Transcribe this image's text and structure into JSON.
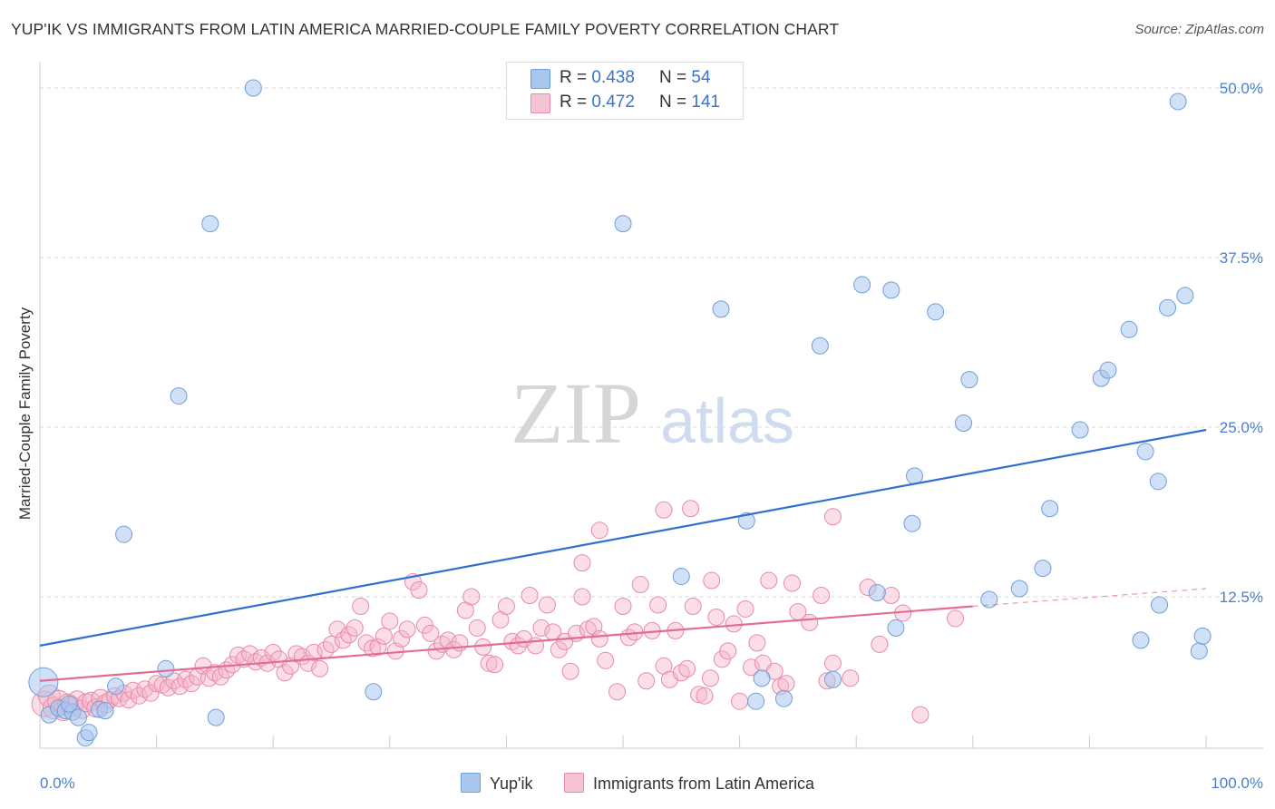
{
  "header": {
    "title": "YUP'IK VS IMMIGRANTS FROM LATIN AMERICA MARRIED-COUPLE FAMILY POVERTY CORRELATION CHART",
    "source": "Source: ZipAtlas.com"
  },
  "legend_top": {
    "rows": [
      {
        "r_label": "R = ",
        "r_value": "0.438",
        "n_label": "N = ",
        "n_value": "54"
      },
      {
        "r_label": "R = ",
        "r_value": "0.472",
        "n_label": "N = ",
        "n_value": "141"
      }
    ]
  },
  "legend_bottom": {
    "items": [
      {
        "label": "Yup'ik"
      },
      {
        "label": "Immigrants from Latin America"
      }
    ]
  },
  "colors": {
    "blue_fill": "#a9c7ee",
    "blue_stroke": "#6f9fd8",
    "blue_line": "#3070cc",
    "pink_fill": "#f6b6ca",
    "pink_stroke": "#e88aa8",
    "pink_line": "#e26c98",
    "grid": "#d9d9d9",
    "tick_label": "#4a7fd0"
  },
  "watermark": {
    "zip": "ZIP",
    "atlas": "atlas"
  },
  "chart_data": {
    "type": "scatter",
    "title": "YUP'IK VS IMMIGRANTS FROM LATIN AMERICA MARRIED-COUPLE FAMILY POVERTY CORRELATION CHART",
    "xlabel": "",
    "ylabel": "Married-Couple Family Poverty",
    "xlim": [
      0,
      100
    ],
    "ylim": [
      0,
      52
    ],
    "x_tick_labels": [
      "0.0%",
      "100.0%"
    ],
    "y_ticks": [
      12.5,
      25.0,
      37.5,
      50.0
    ],
    "y_tick_labels": [
      "12.5%",
      "25.0%",
      "37.5%",
      "50.0%"
    ],
    "grid": true,
    "legend_position": "top-center",
    "series": [
      {
        "name": "Yup'ik",
        "r": 0.438,
        "n": 54,
        "trend": {
          "x0": 0,
          "y0": 8.9,
          "x1": 100,
          "y1": 24.8
        },
        "points": [
          [
            0.3,
            6.2,
            16
          ],
          [
            0.8,
            3.8,
            9
          ],
          [
            1.6,
            4.3,
            9
          ],
          [
            2.2,
            4.1,
            9
          ],
          [
            2.8,
            4.0,
            9
          ],
          [
            3.3,
            3.6,
            9
          ],
          [
            3.9,
            2.1,
            9
          ],
          [
            4.2,
            2.5,
            9
          ],
          [
            5.1,
            4.2,
            9
          ],
          [
            5.6,
            4.1,
            9
          ],
          [
            6.5,
            5.9,
            9
          ],
          [
            7.2,
            17.1,
            9
          ],
          [
            10.8,
            7.2,
            9
          ],
          [
            11.9,
            27.3,
            9
          ],
          [
            14.6,
            40.0,
            9
          ],
          [
            15.1,
            3.6,
            9
          ],
          [
            18.3,
            50.0,
            9
          ],
          [
            28.6,
            5.5,
            9
          ],
          [
            50.0,
            40.0,
            9
          ],
          [
            55.0,
            14.0,
            9
          ],
          [
            58.4,
            33.7,
            9
          ],
          [
            60.6,
            18.1,
            9
          ],
          [
            61.4,
            4.8,
            9
          ],
          [
            61.9,
            6.5,
            9
          ],
          [
            63.8,
            5.0,
            9
          ],
          [
            66.9,
            31.0,
            9
          ],
          [
            68.0,
            6.4,
            9
          ],
          [
            70.5,
            35.5,
            9
          ],
          [
            71.8,
            12.8,
            9
          ],
          [
            73.0,
            35.1,
            9
          ],
          [
            73.4,
            10.2,
            9
          ],
          [
            74.8,
            17.9,
            9
          ],
          [
            75.0,
            21.4,
            9
          ],
          [
            76.8,
            33.5,
            9
          ],
          [
            79.2,
            25.3,
            9
          ],
          [
            79.7,
            28.5,
            9
          ],
          [
            81.4,
            12.3,
            9
          ],
          [
            84.0,
            13.1,
            9
          ],
          [
            86.0,
            14.6,
            9
          ],
          [
            86.6,
            19.0,
            9
          ],
          [
            89.2,
            24.8,
            9
          ],
          [
            91.0,
            28.6,
            9
          ],
          [
            91.6,
            29.2,
            9
          ],
          [
            93.4,
            32.2,
            9
          ],
          [
            94.4,
            9.3,
            9
          ],
          [
            94.8,
            23.2,
            9
          ],
          [
            95.9,
            21.0,
            9
          ],
          [
            96.0,
            11.9,
            9
          ],
          [
            96.7,
            33.8,
            9
          ],
          [
            97.6,
            49.0,
            9
          ],
          [
            98.2,
            34.7,
            9
          ],
          [
            99.4,
            8.5,
            9
          ],
          [
            99.7,
            9.6,
            9
          ],
          [
            2.5,
            4.6,
            9
          ]
        ]
      },
      {
        "name": "Immigrants from Latin America",
        "r": 0.472,
        "n": 141,
        "trend": {
          "x0": 0,
          "y0": 6.3,
          "x1": 80,
          "y1": 11.8
        },
        "trend_dashed": {
          "x0": 80,
          "y0": 11.8,
          "x1": 100,
          "y1": 13.1
        },
        "points": [
          [
            0.4,
            4.6,
            14
          ],
          [
            0.8,
            5.2,
            12
          ],
          [
            1.2,
            4.3,
            12
          ],
          [
            1.6,
            4.8,
            12
          ],
          [
            2.0,
            4.1,
            11
          ],
          [
            2.4,
            4.6,
            11
          ],
          [
            2.8,
            4.4,
            11
          ],
          [
            3.2,
            4.9,
            10
          ],
          [
            3.6,
            4.2,
            10
          ],
          [
            4.0,
            4.7,
            10
          ],
          [
            4.4,
            4.8,
            10
          ],
          [
            4.8,
            4.3,
            10
          ],
          [
            5.2,
            5.0,
            10
          ],
          [
            5.6,
            4.6,
            10
          ],
          [
            6.0,
            4.9,
            9
          ],
          [
            6.4,
            5.2,
            9
          ],
          [
            6.8,
            5.0,
            9
          ],
          [
            7.2,
            5.4,
            9
          ],
          [
            7.6,
            4.9,
            9
          ],
          [
            8.0,
            5.6,
            9
          ],
          [
            8.5,
            5.2,
            9
          ],
          [
            9.0,
            5.7,
            9
          ],
          [
            9.5,
            5.4,
            9
          ],
          [
            10.0,
            6.1,
            9
          ],
          [
            10.5,
            6.0,
            9
          ],
          [
            11.0,
            5.8,
            9
          ],
          [
            11.5,
            6.3,
            9
          ],
          [
            12.0,
            5.9,
            9
          ],
          [
            12.5,
            6.4,
            9
          ],
          [
            13.0,
            6.1,
            9
          ],
          [
            13.5,
            6.6,
            9
          ],
          [
            14.0,
            7.4,
            9
          ],
          [
            14.5,
            6.5,
            9
          ],
          [
            15.0,
            6.9,
            9
          ],
          [
            15.5,
            6.6,
            9
          ],
          [
            16.0,
            7.1,
            9
          ],
          [
            16.5,
            7.5,
            9
          ],
          [
            17.0,
            8.2,
            9
          ],
          [
            17.5,
            7.9,
            9
          ],
          [
            18.0,
            8.3,
            9
          ],
          [
            18.5,
            7.7,
            9
          ],
          [
            19.0,
            8.0,
            9
          ],
          [
            19.5,
            7.6,
            9
          ],
          [
            20.0,
            8.4,
            9
          ],
          [
            20.5,
            7.9,
            9
          ],
          [
            21.0,
            6.9,
            9
          ],
          [
            21.5,
            7.4,
            9
          ],
          [
            22.0,
            8.3,
            9
          ],
          [
            22.5,
            8.1,
            9
          ],
          [
            23.0,
            7.6,
            9
          ],
          [
            23.5,
            8.4,
            9
          ],
          [
            24.0,
            7.2,
            9
          ],
          [
            24.5,
            8.6,
            9
          ],
          [
            25.0,
            9.0,
            9
          ],
          [
            25.5,
            10.1,
            9
          ],
          [
            26.0,
            9.3,
            9
          ],
          [
            26.5,
            9.7,
            9
          ],
          [
            27.0,
            10.2,
            9
          ],
          [
            27.5,
            11.8,
            9
          ],
          [
            28.0,
            9.1,
            9
          ],
          [
            28.5,
            8.7,
            9
          ],
          [
            29.0,
            8.8,
            9
          ],
          [
            29.5,
            9.6,
            9
          ],
          [
            30.0,
            10.7,
            9
          ],
          [
            30.5,
            8.5,
            9
          ],
          [
            31.0,
            9.4,
            9
          ],
          [
            31.5,
            10.1,
            9
          ],
          [
            32.0,
            13.6,
            9
          ],
          [
            32.5,
            13.0,
            9
          ],
          [
            33.0,
            10.4,
            9
          ],
          [
            33.5,
            9.8,
            9
          ],
          [
            34.0,
            8.5,
            9
          ],
          [
            34.5,
            9.0,
            9
          ],
          [
            35.0,
            9.3,
            9
          ],
          [
            35.5,
            8.6,
            9
          ],
          [
            36.0,
            9.1,
            9
          ],
          [
            36.5,
            11.5,
            9
          ],
          [
            37.0,
            12.5,
            9
          ],
          [
            37.5,
            10.2,
            9
          ],
          [
            38.0,
            8.8,
            9
          ],
          [
            38.5,
            7.6,
            9
          ],
          [
            39.0,
            7.5,
            9
          ],
          [
            39.5,
            10.8,
            9
          ],
          [
            40.0,
            11.8,
            9
          ],
          [
            40.5,
            9.2,
            9
          ],
          [
            41.0,
            8.9,
            9
          ],
          [
            41.5,
            9.4,
            9
          ],
          [
            42.0,
            12.6,
            9
          ],
          [
            42.5,
            8.9,
            9
          ],
          [
            43.0,
            10.2,
            9
          ],
          [
            43.5,
            11.9,
            9
          ],
          [
            44.0,
            9.9,
            9
          ],
          [
            44.5,
            8.6,
            9
          ],
          [
            45.0,
            9.2,
            9
          ],
          [
            45.5,
            7.0,
            9
          ],
          [
            46.0,
            9.8,
            9
          ],
          [
            46.5,
            12.5,
            9
          ],
          [
            47.0,
            10.1,
            9
          ],
          [
            47.5,
            10.3,
            9
          ],
          [
            48.0,
            9.4,
            9
          ],
          [
            48.5,
            7.8,
            9
          ],
          [
            48.0,
            17.4,
            9
          ],
          [
            46.5,
            15.0,
            9
          ],
          [
            49.5,
            5.5,
            9
          ],
          [
            50.0,
            11.8,
            9
          ],
          [
            50.5,
            9.5,
            9
          ],
          [
            51.0,
            9.9,
            9
          ],
          [
            51.5,
            13.4,
            9
          ],
          [
            52.0,
            6.3,
            9
          ],
          [
            52.5,
            10.0,
            9
          ],
          [
            53.0,
            11.9,
            9
          ],
          [
            53.5,
            7.4,
            9
          ],
          [
            54.0,
            6.4,
            9
          ],
          [
            54.5,
            10.0,
            9
          ],
          [
            55.0,
            6.9,
            9
          ],
          [
            55.5,
            7.2,
            9
          ],
          [
            56.0,
            11.8,
            9
          ],
          [
            56.5,
            5.3,
            9
          ],
          [
            57.0,
            5.2,
            9
          ],
          [
            57.5,
            6.5,
            9
          ],
          [
            58.0,
            11.0,
            9
          ],
          [
            58.5,
            7.9,
            9
          ],
          [
            59.0,
            8.5,
            9
          ],
          [
            59.5,
            10.5,
            9
          ],
          [
            60.0,
            4.8,
            9
          ],
          [
            60.5,
            11.6,
            9
          ],
          [
            61.0,
            7.3,
            9
          ],
          [
            61.5,
            9.1,
            9
          ],
          [
            62.0,
            7.6,
            9
          ],
          [
            62.5,
            13.7,
            9
          ],
          [
            63.0,
            7.0,
            9
          ],
          [
            63.5,
            5.9,
            9
          ],
          [
            64.0,
            6.1,
            9
          ],
          [
            64.5,
            13.5,
            9
          ],
          [
            65.0,
            11.4,
            9
          ],
          [
            66.0,
            10.6,
            9
          ],
          [
            67.0,
            12.6,
            9
          ],
          [
            67.5,
            6.3,
            9
          ],
          [
            68.0,
            7.6,
            9
          ],
          [
            57.6,
            13.7,
            9
          ],
          [
            71.0,
            13.2,
            9
          ],
          [
            72.0,
            9.0,
            9
          ],
          [
            73.0,
            12.6,
            9
          ],
          [
            74.0,
            11.3,
            9
          ],
          [
            75.5,
            3.8,
            9
          ],
          [
            78.5,
            10.9,
            9
          ],
          [
            53.5,
            18.9,
            9
          ],
          [
            55.8,
            19.0,
            9
          ],
          [
            68.0,
            18.4,
            9
          ],
          [
            69.5,
            6.5,
            9
          ]
        ]
      }
    ]
  }
}
